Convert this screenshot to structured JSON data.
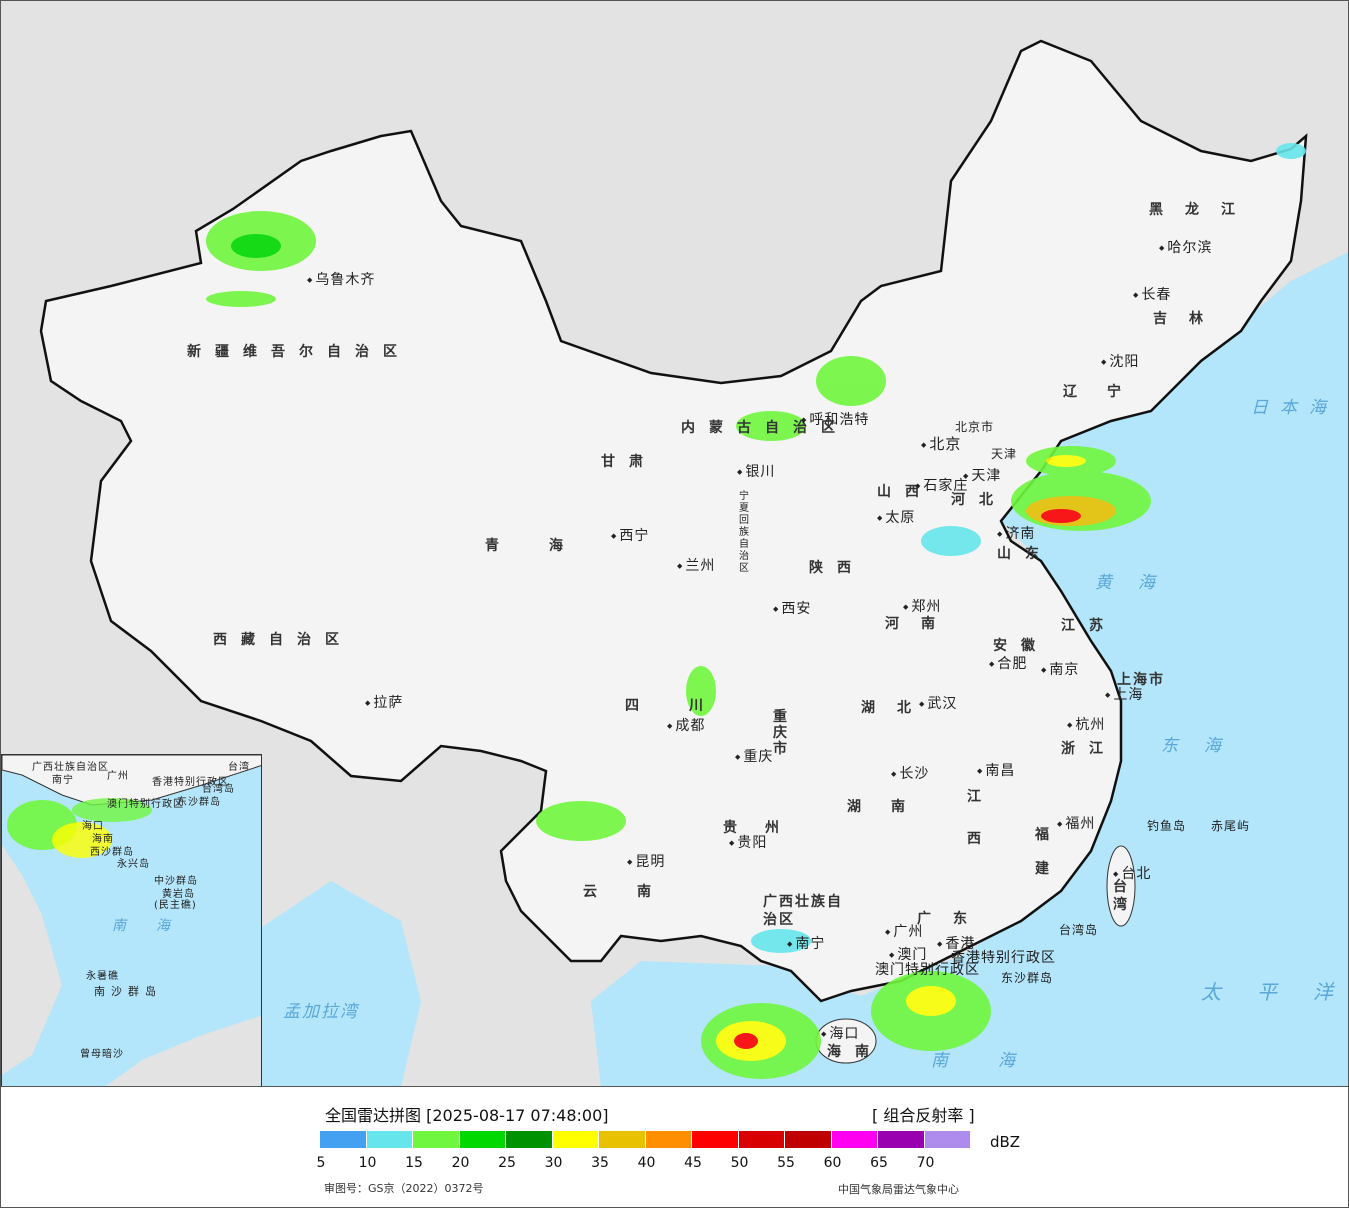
{
  "map": {
    "colors": {
      "land_china": "#f4f4f4",
      "land_other": "#e3e3e3",
      "sea": "#b3e5fb",
      "border": "#111111",
      "rivers": "#2aa8f0"
    },
    "provinces": [
      "新疆维吾尔自治区",
      "西藏自治区",
      "青海",
      "甘肃",
      "内蒙古自治区",
      "黑龙江",
      "吉林",
      "辽宁",
      "河北",
      "山西",
      "陕西",
      "河南",
      "山东",
      "江苏",
      "安徽",
      "湖北",
      "四川",
      "重庆市",
      "贵州",
      "云南",
      "湖南",
      "江西",
      "浙江",
      "福建",
      "广东",
      "广西壮族自治区",
      "海南",
      "台湾",
      "上海市",
      "天津",
      "北京市",
      "宁夏回族自治区",
      "香港特别行政区",
      "澳门特别行政区"
    ],
    "cities": [
      "乌鲁木齐",
      "拉萨",
      "西宁",
      "兰州",
      "银川",
      "呼和浩特",
      "北京",
      "天津",
      "石家庄",
      "太原",
      "济南",
      "郑州",
      "西安",
      "成都",
      "重庆",
      "武汉",
      "合肥",
      "南京",
      "上海",
      "杭州",
      "长沙",
      "南昌",
      "福州",
      "贵阳",
      "昆明",
      "南宁",
      "广州",
      "香港",
      "澳门",
      "海口",
      "台北",
      "沈阳",
      "长春",
      "哈尔滨"
    ],
    "seas": [
      "日本海",
      "黄海",
      "东海",
      "太平洋",
      "南海",
      "孟加拉湾"
    ],
    "islands": [
      "钓鱼岛",
      "赤尾屿",
      "台湾岛",
      "东沙群岛"
    ],
    "inset": {
      "labels": [
        "广西壮族自治区",
        "南宁",
        "广州",
        "香港特别行政区",
        "澳门特别行政区",
        "台湾岛",
        "东沙群岛",
        "海口",
        "海南",
        "西沙群岛",
        "永兴岛",
        "中沙群岛",
        "黄岩岛",
        "(民主礁)",
        "南海",
        "永暑礁",
        "南沙群岛",
        "曾母暗沙",
        "台湾"
      ]
    }
  },
  "legend": {
    "title": "全国雷达拼图 [2025-08-17 07:48:00]",
    "product": "[ 组合反射率 ]",
    "unit": "dBZ",
    "colors": [
      "#44a0f0",
      "#66e6ec",
      "#70f63e",
      "#00d800",
      "#009200",
      "#ffff00",
      "#e8c200",
      "#ff8f00",
      "#ff0000",
      "#d80000",
      "#c00000",
      "#ff00f0",
      "#9900b0",
      "#ad8ced"
    ],
    "ticks": [
      "5",
      "10",
      "15",
      "20",
      "25",
      "30",
      "35",
      "40",
      "45",
      "50",
      "55",
      "60",
      "65",
      "70"
    ],
    "approval": "审图号：GS京（2022）0372号",
    "org": "中国气象局雷达气象中心"
  }
}
